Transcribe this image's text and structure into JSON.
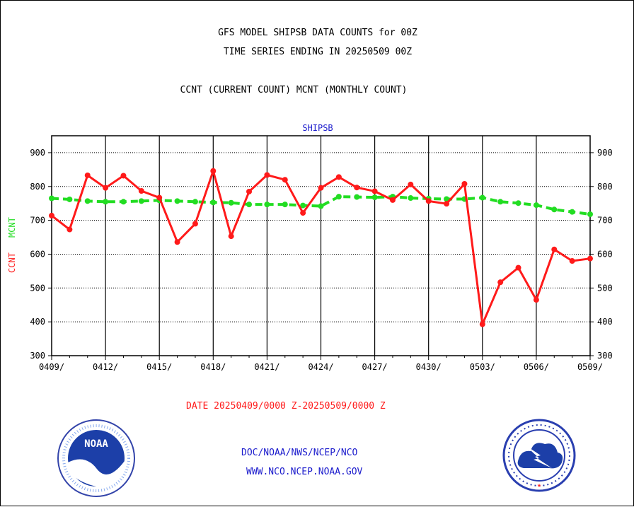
{
  "header": {
    "line1": "GFS MODEL SHIPSB DATA COUNTS for 00Z",
    "line2": "TIME SERIES ENDING IN 20250509 00Z",
    "line3": "CCNT (CURRENT COUNT) MCNT (MONTHLY COUNT)"
  },
  "footer": {
    "date_range": "DATE 20250409/0000 Z-20250509/0000 Z",
    "org_path": "DOC/NOAA/NWS/NCEP/NCO",
    "website": "WWW.NCO.NCEP.NOAA.GOV"
  },
  "logos": {
    "noaa_text": "NOAA",
    "nws_ring_text": "NATIONAL WEATHER SERVICE"
  },
  "chart_data": {
    "type": "line",
    "title": "SHIPSB",
    "ylabel_ccnt": "CCNT",
    "ylabel_mcnt": "MCNT",
    "xlabel": "",
    "ylim": [
      300,
      950
    ],
    "yticks": [
      300,
      400,
      500,
      600,
      700,
      800,
      900
    ],
    "xtick_labels": [
      "0409/",
      "0412/",
      "0415/",
      "0418/",
      "0421/",
      "0424/",
      "0427/",
      "0430/",
      "0503/",
      "0506/",
      "0509/"
    ],
    "x": [
      "0409",
      "0410",
      "0411",
      "0412",
      "0413",
      "0414",
      "0415",
      "0416",
      "0417",
      "0418",
      "0419",
      "0420",
      "0421",
      "0422",
      "0423",
      "0424",
      "0425",
      "0426",
      "0427",
      "0428",
      "0429",
      "0430",
      "0501",
      "0502",
      "0503",
      "0504",
      "0505",
      "0506",
      "0507",
      "0508",
      "0509"
    ],
    "grid": true,
    "series": [
      {
        "name": "CCNT",
        "color": "#ff1a1a",
        "style": "solid",
        "values": [
          714,
          673,
          833,
          796,
          832,
          787,
          767,
          636,
          690,
          846,
          653,
          785,
          834,
          820,
          722,
          796,
          828,
          797,
          786,
          760,
          806,
          757,
          749,
          808,
          393,
          517,
          560,
          465,
          614,
          580,
          587
        ]
      },
      {
        "name": "MCNT",
        "color": "#22dd22",
        "style": "dashed",
        "values": [
          765,
          762,
          757,
          755,
          755,
          757,
          759,
          757,
          755,
          753,
          752,
          747,
          747,
          747,
          744,
          742,
          770,
          769,
          768,
          770,
          766,
          764,
          763,
          763,
          767,
          755,
          751,
          745,
          732,
          725,
          718
        ]
      }
    ]
  }
}
